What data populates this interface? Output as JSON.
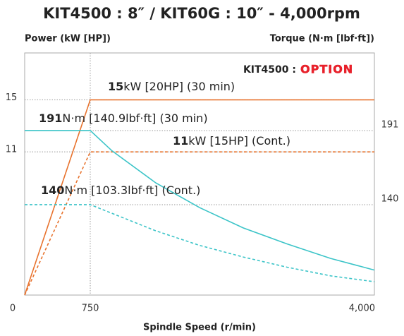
{
  "chart_data": {
    "type": "line",
    "title": "KIT4500 : 8″ / KIT60G : 10″ - 4,000rpm",
    "y_label": "Power (kW [HP])",
    "y2_label": "Torque (N·m [lbf·ft])",
    "x_label": "Spindle Speed (r/min)",
    "option_prefix": "KIT4500 :",
    "option_badge": "OPTION",
    "xlim": [
      0,
      4000
    ],
    "xticks": [
      0,
      750,
      {
        "value": 4000,
        "label": "4,000"
      }
    ],
    "ylim": [
      0,
      18.6
    ],
    "yticks": [
      15,
      11
    ],
    "y2lim": [
      77.8,
      244.4
    ],
    "y2ticks": [
      191,
      140
    ],
    "grid": true,
    "series": [
      {
        "name": "Power (30 min)",
        "color": "#e8732e",
        "dashed": false,
        "x": [
          0,
          750,
          4000
        ],
        "values": [
          0,
          15,
          15
        ]
      },
      {
        "name": "Power (Cont.)",
        "color": "#e8732e",
        "dashed": true,
        "x": [
          0,
          750,
          4000
        ],
        "values": [
          0,
          11,
          11
        ]
      },
      {
        "name": "Torque (30 min)",
        "color": "#3cc4c8",
        "dashed": false,
        "axis": "y2",
        "x": [
          0,
          750,
          1000,
          1500,
          2000,
          2500,
          3000,
          3500,
          4000
        ],
        "values": [
          191,
          191,
          177,
          155,
          138,
          124,
          113,
          103,
          95
        ]
      },
      {
        "name": "Torque (Cont.)",
        "color": "#3cc4c8",
        "dashed": true,
        "axis": "y2",
        "x": [
          0,
          750,
          1000,
          1500,
          2000,
          2500,
          3000,
          3500,
          4000
        ],
        "values": [
          140,
          140,
          134,
          122,
          112,
          104,
          97,
          91,
          87
        ]
      }
    ],
    "annotations": [
      {
        "bold": "15",
        "text": "kW [20HP] (30 min)"
      },
      {
        "bold": "191",
        "text": "N·m [140.9lbf·ft] (30 min)"
      },
      {
        "bold": "11",
        "text": "kW [15HP] (Cont.)"
      },
      {
        "bold": "140",
        "text": "N·m [103.3lbf·ft] (Cont.)"
      }
    ]
  }
}
